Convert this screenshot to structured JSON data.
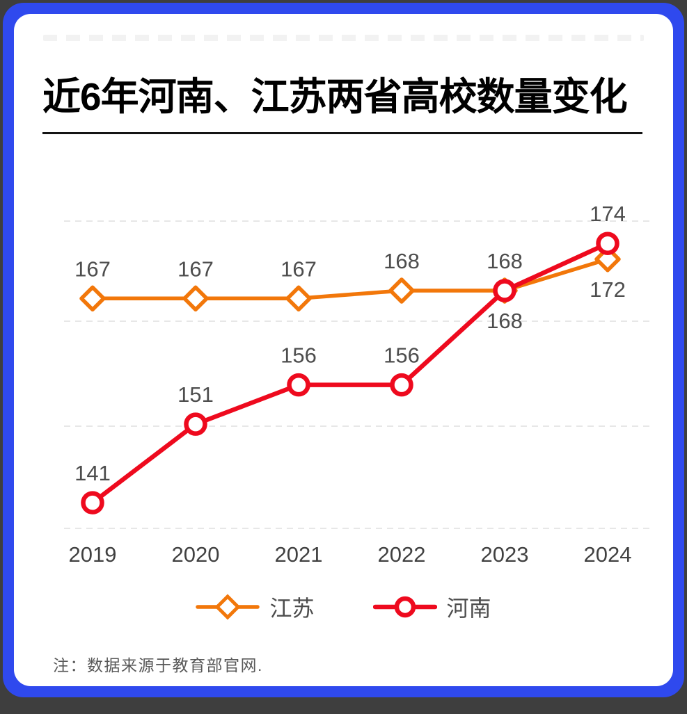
{
  "frame": {
    "outer_background": "#3E3E3E",
    "border_color": "#2F49EE",
    "card_background": "#FFFFFF"
  },
  "header": {
    "title": "近6年河南、江苏两省高校数量变化"
  },
  "chart_data": {
    "type": "line",
    "title": "近6年河南、江苏两省高校数量变化",
    "categories": [
      "2019",
      "2020",
      "2021",
      "2022",
      "2023",
      "2024"
    ],
    "series": [
      {
        "name": "江苏",
        "color": "#F2770A",
        "marker": "diamond",
        "values": [
          167,
          167,
          167,
          168,
          168,
          172
        ],
        "label_positions": [
          "above",
          "above",
          "above",
          "above",
          "above",
          "below"
        ]
      },
      {
        "name": "河南",
        "color": "#EE0A1E",
        "marker": "circle",
        "values": [
          141,
          151,
          156,
          156,
          168,
          174
        ],
        "label_positions": [
          "above",
          "above",
          "above",
          "above",
          "below",
          "above"
        ]
      }
    ],
    "xlabel": "",
    "ylabel": "",
    "ylim": [
      135,
      180
    ],
    "grid": "horizontal-dashed",
    "legend_position": "bottom",
    "data_label_color": "#4D4D4D",
    "axis_label_color": "#414141",
    "gridline_color": "#E7E7E7"
  },
  "footnote": {
    "text": "注：数据来源于教育部官网."
  }
}
